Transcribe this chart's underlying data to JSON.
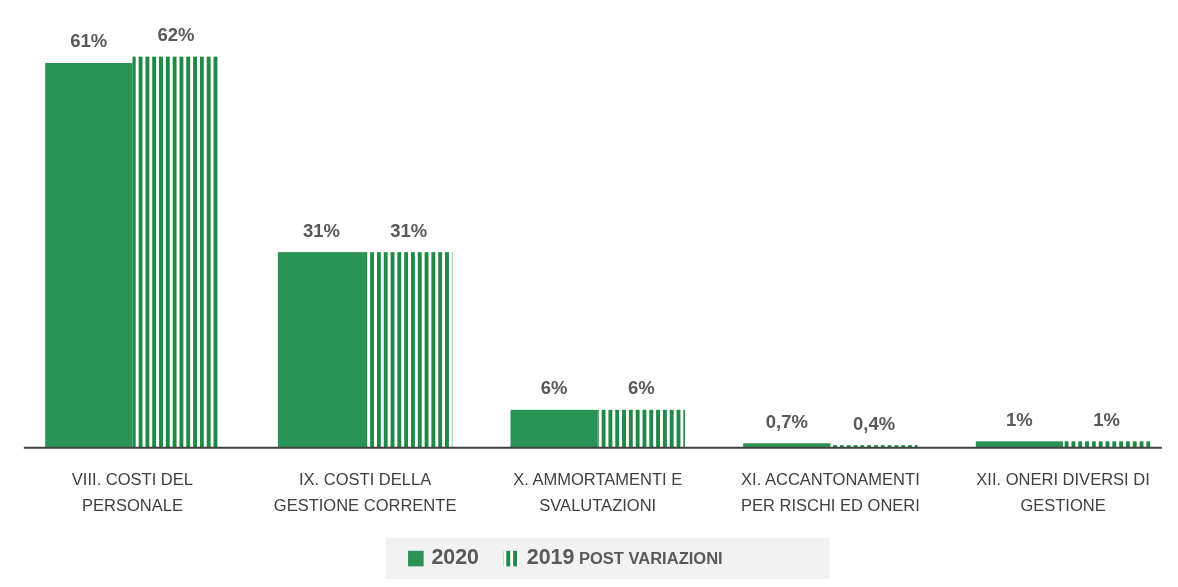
{
  "chart_data": {
    "type": "bar",
    "categories": [
      "VIII. COSTI DEL PERSONALE",
      "IX. COSTI DELLA GESTIONE CORRENTE",
      "X. AMMORTAMENTI E SVALUTAZIONI",
      "XI. ACCANTONAMENTI PER RISCHI ED ONERI",
      "XII. ONERI DIVERSI DI GESTIONE"
    ],
    "series": [
      {
        "name": "2020",
        "color": "#2a9455",
        "values": [
          61,
          31,
          6,
          0.7,
          1
        ],
        "value_labels": [
          "61%",
          "31%",
          "6%",
          "0,7%",
          "1%"
        ]
      },
      {
        "name": "2019 POST VARIAZIONI",
        "color": "#1f8a45",
        "values": [
          62,
          31,
          6,
          0.4,
          1
        ],
        "value_labels": [
          "62%",
          "31%",
          "6%",
          "0,4%",
          "1%"
        ]
      }
    ],
    "legend": "bottom"
  }
}
